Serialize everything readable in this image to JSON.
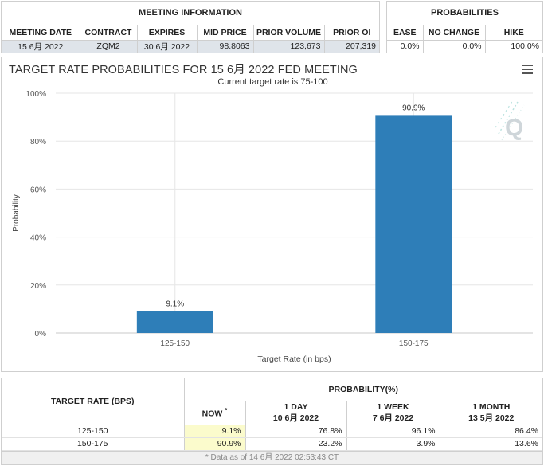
{
  "meeting": {
    "title": "MEETING INFORMATION",
    "columns": [
      "MEETING DATE",
      "CONTRACT",
      "EXPIRES",
      "MID PRICE",
      "PRIOR VOLUME",
      "PRIOR OI"
    ],
    "row": [
      "15 6月 2022",
      "ZQM2",
      "30 6月 2022",
      "98.8063",
      "123,673",
      "207,319"
    ]
  },
  "probabilities": {
    "title": "PROBABILITIES",
    "columns": [
      "EASE",
      "NO CHANGE",
      "HIKE"
    ],
    "row": [
      "0.0%",
      "0.0%",
      "100.0%"
    ]
  },
  "chart": {
    "menu_icon": "hamburger-menu-icon",
    "logo_icon": "q-watermark-icon",
    "bar_color": "#2e7eb8"
  },
  "chart_data": {
    "type": "bar",
    "title": "TARGET RATE PROBABILITIES FOR 15 6月 2022 FED MEETING",
    "subtitle": "Current target rate is 75-100",
    "xlabel": "Target Rate (in bps)",
    "ylabel": "Probability",
    "categories": [
      "125-150",
      "150-175"
    ],
    "values": [
      9.1,
      90.9
    ],
    "value_labels": [
      "9.1%",
      "90.9%"
    ],
    "ylim": [
      0,
      100
    ],
    "yticks": [
      0,
      20,
      40,
      60,
      80,
      100
    ],
    "ytick_labels": [
      "0%",
      "20%",
      "40%",
      "60%",
      "80%",
      "100%"
    ],
    "grid": true,
    "legend": "none"
  },
  "table": {
    "rate_header": "TARGET RATE (BPS)",
    "prob_header": "PROBABILITY(%)",
    "now_label": "NOW",
    "now_marker": "*",
    "periods": [
      {
        "label": "1 DAY",
        "date": "10 6月 2022"
      },
      {
        "label": "1 WEEK",
        "date": "7 6月 2022"
      },
      {
        "label": "1 MONTH",
        "date": "13 5月 2022"
      }
    ],
    "rows": [
      {
        "rate": "125-150",
        "now": "9.1%",
        "day": "76.8%",
        "week": "96.1%",
        "month": "86.4%"
      },
      {
        "rate": "150-175",
        "now": "90.9%",
        "day": "23.2%",
        "week": "3.9%",
        "month": "13.6%"
      }
    ],
    "footnote": "* Data as of 14 6月 2022 02:53:43 CT"
  }
}
